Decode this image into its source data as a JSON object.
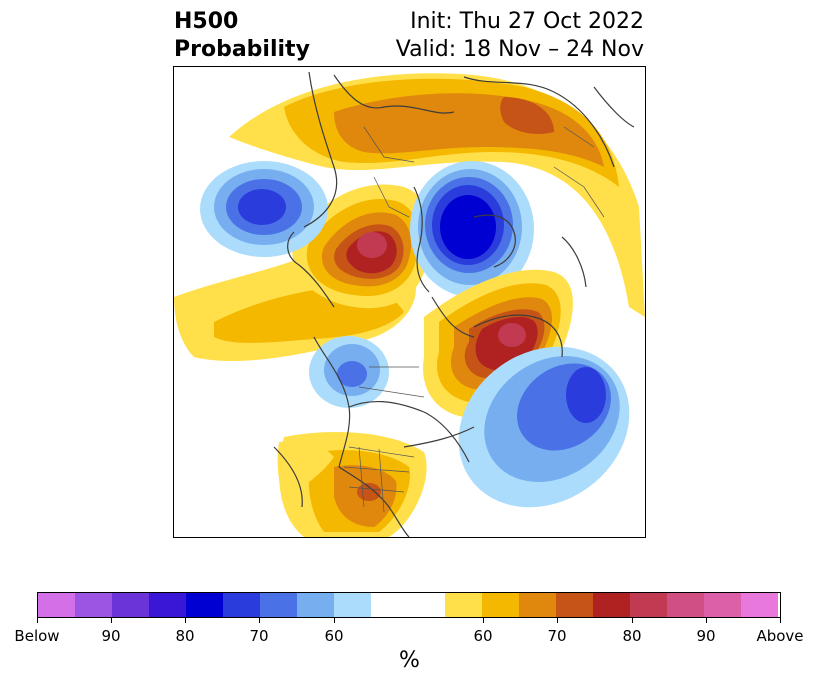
{
  "title": {
    "left_line1": "H500",
    "left_line2": "Probability",
    "right_line1": "Init: Thu 27 Oct 2022",
    "right_line2": "Valid: 18 Nov – 24 Nov"
  },
  "colorbar": {
    "unit": "%",
    "tick_labels": [
      "Below",
      "90",
      "80",
      "70",
      "60",
      "60",
      "70",
      "80",
      "90",
      "Above"
    ],
    "colors": [
      "#d370e8",
      "#9c55e3",
      "#6a34d8",
      "#3a17d6",
      "#0000d2",
      "#2a3cdc",
      "#4a72e6",
      "#76aef0",
      "#acdcfb",
      "#ffffff",
      "#ffe04a",
      "#f5b800",
      "#e0880e",
      "#c65416",
      "#b02222",
      "#c23a52",
      "#d05084",
      "#dc60a8",
      "#e878dc"
    ]
  },
  "map": {
    "fill_colors": {
      "yellow": "#ffe04a",
      "gold": "#f5b800",
      "orange": "#e0880e",
      "rust": "#c65416",
      "red": "#b02222",
      "pink": "#c23a52",
      "lightblue": "#acdcfb",
      "midblue": "#76aef0",
      "blue": "#4a72e6",
      "deepblue": "#2a3cdc",
      "navy": "#0000d2"
    },
    "coastline_color": "#3c3c3c"
  }
}
